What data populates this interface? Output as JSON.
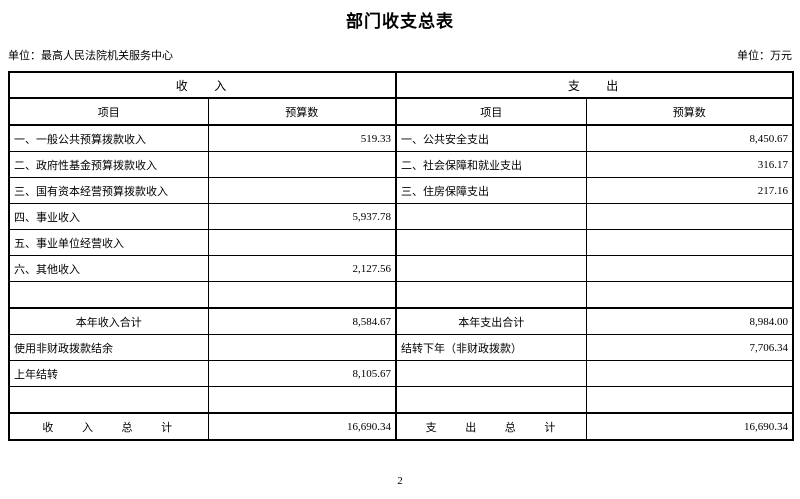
{
  "title": "部门收支总表",
  "meta": {
    "unit_left": "单位：最高人民法院机关服务中心",
    "unit_right": "单位：万元"
  },
  "table": {
    "income_header": "收入",
    "expenditure_header": "支出",
    "column_headers": {
      "item": "项目",
      "budget": "预算数"
    },
    "rows": [
      {
        "cells": [
          "一、一般公共预算拨款收入",
          "519.33",
          "一、公共安全支出",
          "8,450.67"
        ]
      },
      {
        "cells": [
          "二、政府性基金预算拨款收入",
          "",
          "二、社会保障和就业支出",
          "316.17"
        ]
      },
      {
        "cells": [
          "三、国有资本经营预算拨款收入",
          "",
          "三、住房保障支出",
          "217.16"
        ]
      },
      {
        "cells": [
          "四、事业收入",
          "5,937.78",
          "",
          ""
        ]
      },
      {
        "cells": [
          "五、事业单位经营收入",
          "",
          "",
          ""
        ]
      },
      {
        "cells": [
          "六、其他收入",
          "2,127.56",
          "",
          ""
        ]
      },
      {
        "cells": [
          "",
          "",
          "",
          ""
        ]
      },
      {
        "cells": [
          "本年收入合计",
          "8,584.67",
          "本年支出合计",
          "8,984.00"
        ]
      },
      {
        "cells": [
          "使用非财政拨款结余",
          "",
          "结转下年（非财政拨款）",
          "7,706.34"
        ]
      },
      {
        "cells": [
          "上年结转",
          "8,105.67",
          "",
          ""
        ]
      },
      {
        "cells": [
          "",
          "",
          "",
          ""
        ]
      },
      {
        "cells": [
          "收入总计",
          "16,690.34",
          "支出总计",
          "16,690.34"
        ]
      }
    ]
  },
  "footer": {
    "page_number": "2"
  }
}
